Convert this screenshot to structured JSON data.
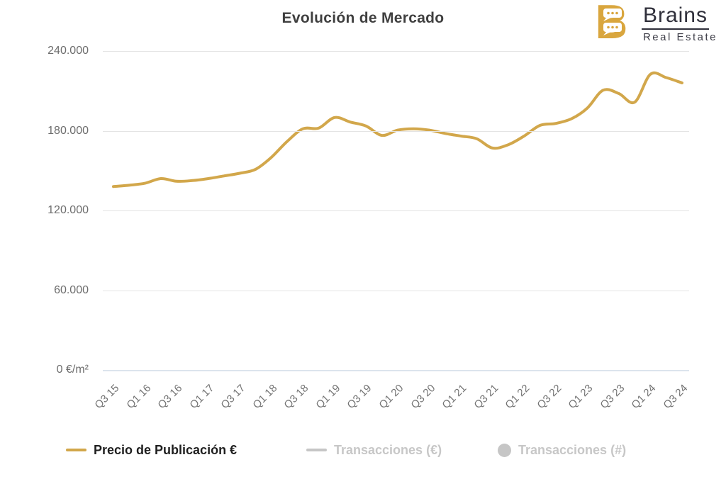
{
  "title": "Evolución de Mercado",
  "logo": {
    "brand": "Brains",
    "tagline": "Real Estate",
    "icon": "speech-bubbles-b-icon",
    "icon_color": "#D9A63E",
    "text_color": "#2F2F3A"
  },
  "chart_data": {
    "type": "line",
    "title": "Evolución de Mercado",
    "unit": "€/m²",
    "ylim": [
      0,
      240000
    ],
    "grid": true,
    "legend_position": "bottom",
    "line_style": "smooth",
    "y_ticks": [
      "240.000",
      "180.000",
      "120.000",
      "60.000",
      "0 €/m²"
    ],
    "x_tick_labels": [
      "Q3 15",
      "Q1 16",
      "Q3 16",
      "Q1 17",
      "Q3 17",
      "Q1 18",
      "Q3 18",
      "Q1 19",
      "Q3 19",
      "Q1 20",
      "Q3 20",
      "Q1 21",
      "Q3 21",
      "Q1 22",
      "Q3 22",
      "Q1 23",
      "Q3 23",
      "Q1 24",
      "Q3 24"
    ],
    "x": [
      "Q3 15",
      "Q4 15",
      "Q1 16",
      "Q2 16",
      "Q3 16",
      "Q4 16",
      "Q1 17",
      "Q2 17",
      "Q3 17",
      "Q4 17",
      "Q1 18",
      "Q2 18",
      "Q3 18",
      "Q4 18",
      "Q1 19",
      "Q2 19",
      "Q3 19",
      "Q4 19",
      "Q1 20",
      "Q2 20",
      "Q3 20",
      "Q4 20",
      "Q1 21",
      "Q2 21",
      "Q3 21",
      "Q4 21",
      "Q1 22",
      "Q2 22",
      "Q3 22",
      "Q4 22",
      "Q1 23",
      "Q2 23",
      "Q3 23",
      "Q4 23",
      "Q1 24",
      "Q2 24",
      "Q3 24"
    ],
    "series": [
      {
        "name": "Precio de Publicación €",
        "color": "#D2A74B",
        "visible": true,
        "marker": "line",
        "values": [
          138000,
          139000,
          140500,
          144000,
          142000,
          142500,
          144000,
          146000,
          148000,
          151000,
          160000,
          172000,
          181500,
          182000,
          190000,
          186500,
          183500,
          176500,
          180500,
          181500,
          180500,
          178000,
          176000,
          174000,
          167000,
          169500,
          176000,
          184000,
          185500,
          189000,
          197000,
          210500,
          208000,
          201500,
          222500,
          220000,
          216000
        ]
      },
      {
        "name": "Transacciones (€)",
        "color": "#C6C6C6",
        "visible": false,
        "marker": "line",
        "values": []
      },
      {
        "name": "Transacciones (#)",
        "color": "#C6C6C6",
        "visible": false,
        "marker": "circle",
        "values": []
      }
    ]
  }
}
